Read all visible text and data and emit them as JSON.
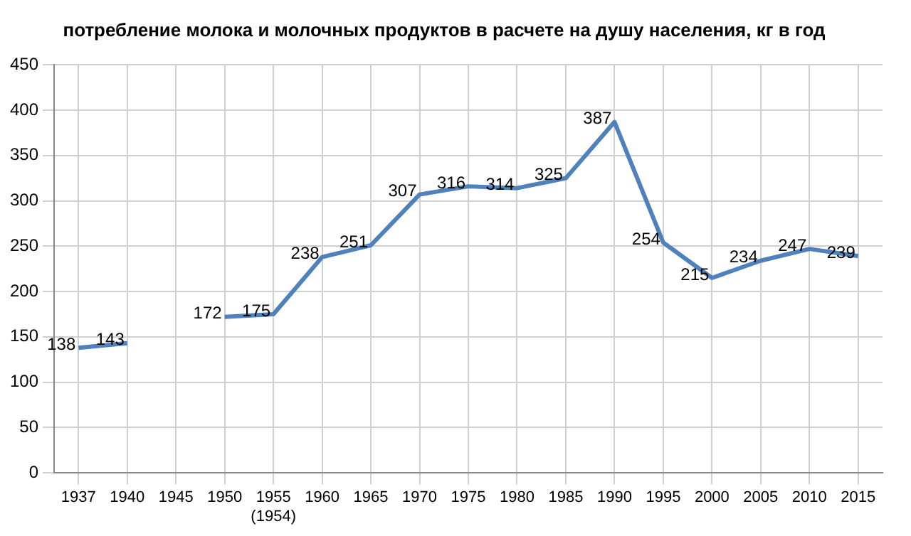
{
  "chart_data": {
    "type": "line",
    "title": "потребление молока и молочных продуктов в расчете на душу населения, кг в год",
    "categories": [
      "1937",
      "1940",
      "1945",
      "1950",
      "1955\n(1954)",
      "1960",
      "1965",
      "1970",
      "1975",
      "1980",
      "1985",
      "1990",
      "1995",
      "2000",
      "2005",
      "2010",
      "2015"
    ],
    "values": [
      138,
      143,
      null,
      172,
      175,
      238,
      251,
      307,
      316,
      314,
      325,
      387,
      254,
      215,
      234,
      247,
      239
    ],
    "color": "#4f81bd",
    "ylim": [
      0,
      450
    ],
    "yticks": [
      0,
      50,
      100,
      150,
      200,
      250,
      300,
      350,
      400,
      450
    ],
    "grid": true,
    "data_labels": true,
    "marker": "none",
    "line_style": "solid"
  }
}
